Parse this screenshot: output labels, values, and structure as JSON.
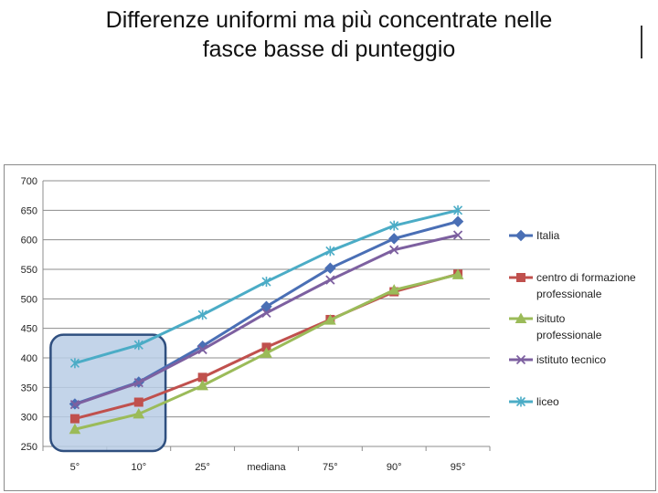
{
  "slide": {
    "title_line1": "Differenze uniformi ma più concentrate nelle",
    "title_line2": "fasce basse di punteggio"
  },
  "chart_data": {
    "type": "line",
    "categories": [
      "5°",
      "10°",
      "25°",
      "mediana",
      "75°",
      "90°",
      "95°"
    ],
    "ylim": [
      250,
      700
    ],
    "yticks": [
      250,
      300,
      350,
      400,
      450,
      500,
      550,
      600,
      650,
      700
    ],
    "grid": true,
    "legend_position": "right",
    "highlight": {
      "from_category": "5°",
      "to_category": "10°",
      "ylim": [
        250,
        430
      ]
    },
    "series": [
      {
        "name": "Italia",
        "legend_lines": [
          "Italia"
        ],
        "color": "#4a6fb5",
        "marker": "diamond",
        "values": [
          322,
          359,
          420,
          487,
          552,
          602,
          631
        ]
      },
      {
        "name": "centro di formazione professionale",
        "legend_lines": [
          "centro di formazione",
          "professionale"
        ],
        "color": "#c0504d",
        "marker": "square",
        "values": [
          297,
          325,
          367,
          418,
          465,
          512,
          542
        ]
      },
      {
        "name": "isituto professionale",
        "legend_lines": [
          "isituto",
          "professionale"
        ],
        "color": "#9bbb59",
        "marker": "triangle",
        "values": [
          279,
          305,
          353,
          408,
          464,
          515,
          541
        ]
      },
      {
        "name": "istituto tecnico",
        "legend_lines": [
          "istituto tecnico"
        ],
        "color": "#7d60a0",
        "marker": "x",
        "values": [
          321,
          358,
          414,
          476,
          532,
          583,
          608
        ]
      },
      {
        "name": "liceo",
        "legend_lines": [
          "liceo"
        ],
        "color": "#4bacc6",
        "marker": "star",
        "values": [
          391,
          422,
          473,
          529,
          581,
          624,
          650
        ]
      }
    ]
  }
}
